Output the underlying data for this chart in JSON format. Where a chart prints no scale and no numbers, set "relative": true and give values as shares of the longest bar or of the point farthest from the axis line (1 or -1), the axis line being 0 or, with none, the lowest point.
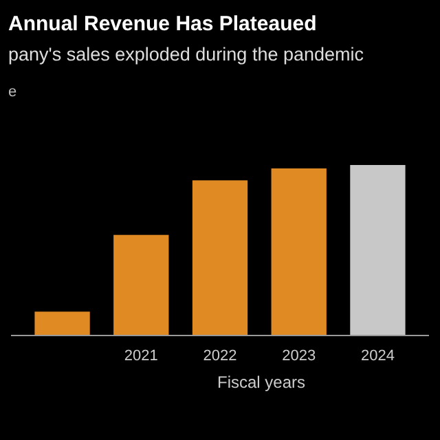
{
  "chart_data": {
    "type": "bar",
    "title": "Annual Revenue Has Plateaued",
    "subtitle": "pany's sales exploded during the pandemic",
    "ylabel": "e",
    "xlabel": "Fiscal years",
    "relative": true,
    "categories": [
      null,
      "2021",
      "2022",
      "2023",
      "2024"
    ],
    "values": [
      0.14,
      0.59,
      0.91,
      0.98,
      1
    ],
    "colors": [
      "#e08a24",
      "#e08a24",
      "#e08a24",
      "#e08a24",
      "#c8c8c8"
    ]
  }
}
